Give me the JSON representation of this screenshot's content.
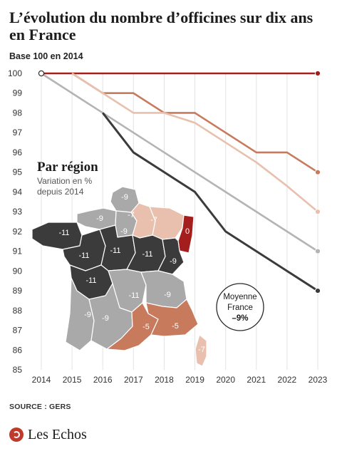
{
  "header": {
    "title": "L’évolution du nombre d’officines sur dix ans en France",
    "subtitle": "Base 100 en 2014"
  },
  "inset": {
    "title": "Par région",
    "subtitle_line1": "Variation en %",
    "subtitle_line2": "depuis 2014",
    "regions": [
      {
        "name": "Hauts-de-France",
        "value": "-9",
        "color": "#a9a9a9"
      },
      {
        "name": "Normandie",
        "value": "-9",
        "color": "#a9a9a9"
      },
      {
        "name": "Île-de-France",
        "value": "-9",
        "color": "#a9a9a9"
      },
      {
        "name": "Grand Est",
        "value": "-7",
        "color": "#e8c0ad"
      },
      {
        "name": "Champagne",
        "value": "-7",
        "color": "#e8c0ad"
      },
      {
        "name": "Alsace",
        "value": "0",
        "color": "#a41e1e"
      },
      {
        "name": "Bretagne",
        "value": "-11",
        "color": "#3b3b3b"
      },
      {
        "name": "Pays de la Loire",
        "value": "-11",
        "color": "#3b3b3b"
      },
      {
        "name": "Centre-Val de Loire",
        "value": "-11",
        "color": "#3b3b3b"
      },
      {
        "name": "Bourgogne",
        "value": "-11",
        "color": "#3b3b3b"
      },
      {
        "name": "Limousin",
        "value": "-11",
        "color": "#3b3b3b"
      },
      {
        "name": "Auvergne",
        "value": "-11",
        "color": "#3b3b3b"
      },
      {
        "name": "Franche-Comté",
        "value": "-9",
        "color": "#a9a9a9"
      },
      {
        "name": "Rhône-Alpes",
        "value": "-9",
        "color": "#a9a9a9"
      },
      {
        "name": "Nouvelle-Aquitaine",
        "value": "-9",
        "color": "#a9a9a9"
      },
      {
        "name": "Occitanie Ouest",
        "value": "-9",
        "color": "#a9a9a9"
      },
      {
        "name": "Occitanie Est",
        "value": "-5",
        "color": "#c87a5c"
      },
      {
        "name": "Provence-Alpes-Côte d'Azur",
        "value": "-5",
        "color": "#c87a5c"
      },
      {
        "name": "Corse",
        "value": "-7",
        "color": "#e8c0ad"
      }
    ],
    "average_label_line1": "Moyenne",
    "average_label_line2": "France",
    "average_value": "–9%"
  },
  "chart_data": {
    "type": "line",
    "title": "L’évolution du nombre d’officines sur dix ans en France",
    "subtitle": "Base 100 en 2014",
    "x": [
      2014,
      2015,
      2016,
      2017,
      2018,
      2019,
      2020,
      2021,
      2022,
      2023
    ],
    "xlim": [
      2014,
      2023
    ],
    "ylim": [
      85,
      100
    ],
    "yticks": [
      85,
      86,
      87,
      88,
      89,
      90,
      91,
      92,
      93,
      94,
      95,
      96,
      97,
      98,
      99,
      100
    ],
    "grid": "vertical",
    "series": [
      {
        "color": "#a41e1e",
        "values": [
          100,
          100,
          100,
          100,
          100,
          100,
          100,
          100,
          100,
          100
        ]
      },
      {
        "color": "#c87a5c",
        "values": [
          null,
          100,
          99,
          99,
          98,
          98,
          97,
          96,
          96,
          95
        ]
      },
      {
        "color": "#e8c0ad",
        "values": [
          null,
          100,
          99,
          98,
          98,
          97.5,
          96.5,
          95.5,
          94.3,
          93
        ]
      },
      {
        "color": "#b4b4b4",
        "values": [
          100,
          99,
          98,
          97,
          96,
          95,
          94,
          93,
          92,
          91
        ]
      },
      {
        "color": "#3b3b3b",
        "values": [
          null,
          null,
          98,
          96,
          95,
          94,
          92,
          91,
          90,
          89
        ]
      }
    ]
  },
  "footer": {
    "source": "SOURCE : GERS",
    "brand": "Les Echos"
  }
}
